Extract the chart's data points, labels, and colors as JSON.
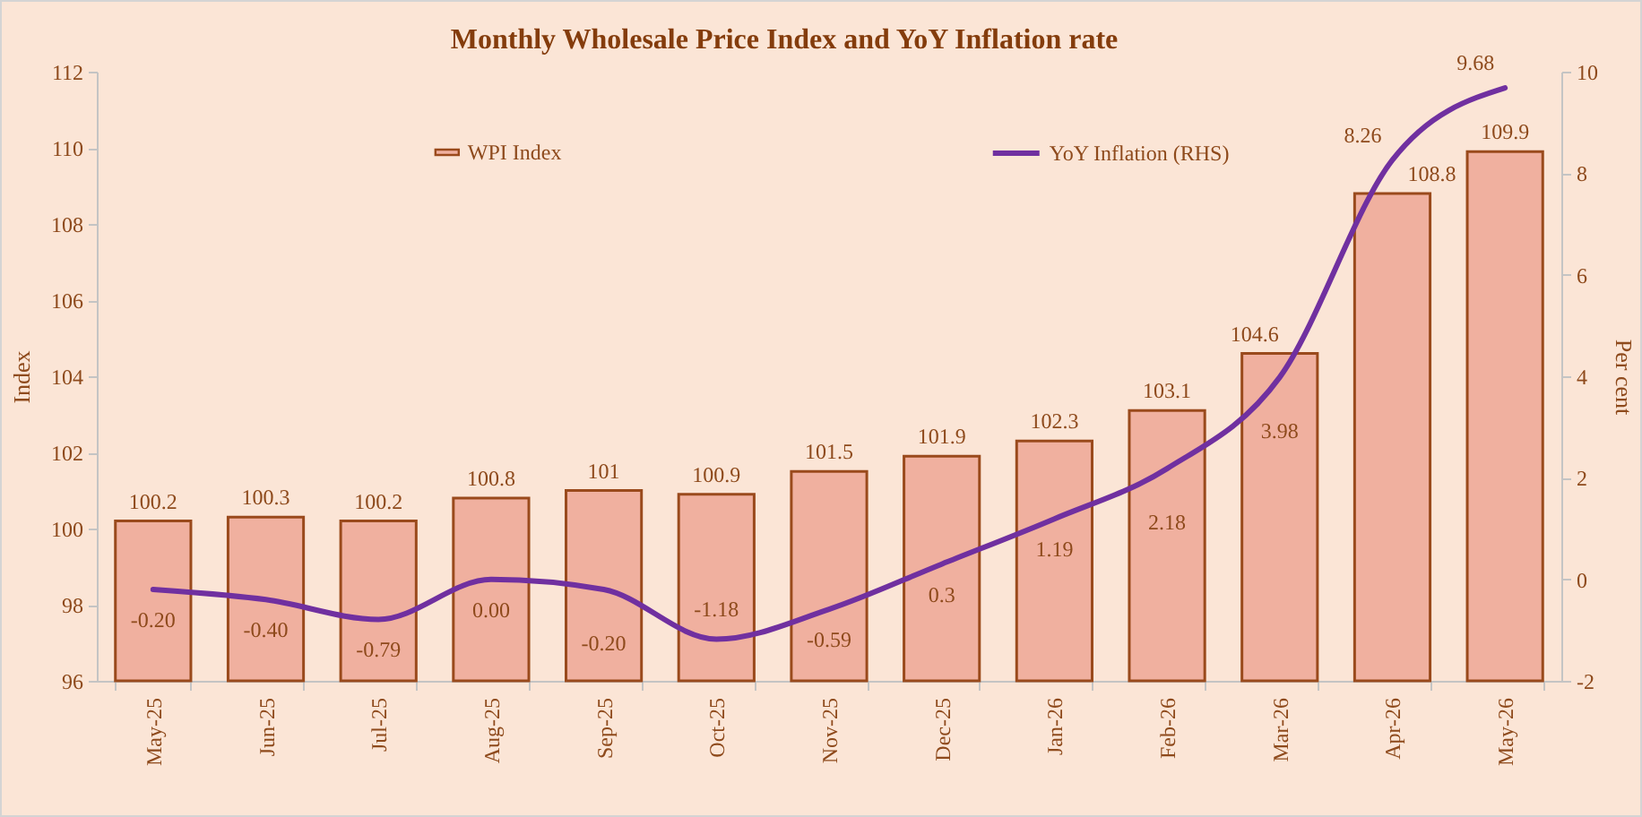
{
  "chart_data": {
    "type": "bar",
    "title": "Monthly Wholesale Price Index and YoY Inflation rate",
    "ylabel": "Index",
    "y2label": "Per cent",
    "categories": [
      "May-25",
      "Jun-25",
      "Jul-25",
      "Aug-25",
      "Sep-25",
      "Oct-25",
      "Nov-25",
      "Dec-25",
      "Jan-26",
      "Feb-26",
      "Mar-26",
      "Apr-26",
      "May-26"
    ],
    "series": [
      {
        "name": "WPI Index",
        "color": "#f0b09f",
        "values": [
          100.2,
          100.3,
          100.2,
          100.8,
          101,
          100.9,
          101.5,
          101.9,
          102.3,
          103.1,
          104.6,
          108.8,
          109.9
        ],
        "value_labels": [
          "100.2",
          "100.3",
          "100.2",
          "100.8",
          "101",
          "100.9",
          "101.5",
          "101.9",
          "102.3",
          "103.1",
          "104.6",
          "108.8",
          "109.9"
        ]
      },
      {
        "name": "YoY Inflation (RHS)",
        "type": "line",
        "axis": "y2",
        "color": "#7030a0",
        "values": [
          -0.2,
          -0.4,
          -0.79,
          0.0,
          -0.2,
          -1.18,
          -0.59,
          0.3,
          1.19,
          2.18,
          3.98,
          8.26,
          9.68
        ],
        "value_labels": [
          "-0.20",
          "-0.40",
          "-0.79",
          "0.00",
          "-0.20",
          "-1.18",
          "-0.59",
          "0.3",
          "1.19",
          "2.18",
          "3.98",
          "8.26",
          "9.68"
        ]
      }
    ],
    "ylim": [
      96,
      112
    ],
    "yticks": [
      96,
      98,
      100,
      102,
      104,
      106,
      108,
      110,
      112
    ],
    "y2lim": [
      -2,
      10
    ],
    "y2ticks": [
      -2,
      0,
      2,
      4,
      6,
      8,
      10
    ],
    "legend": "top"
  }
}
